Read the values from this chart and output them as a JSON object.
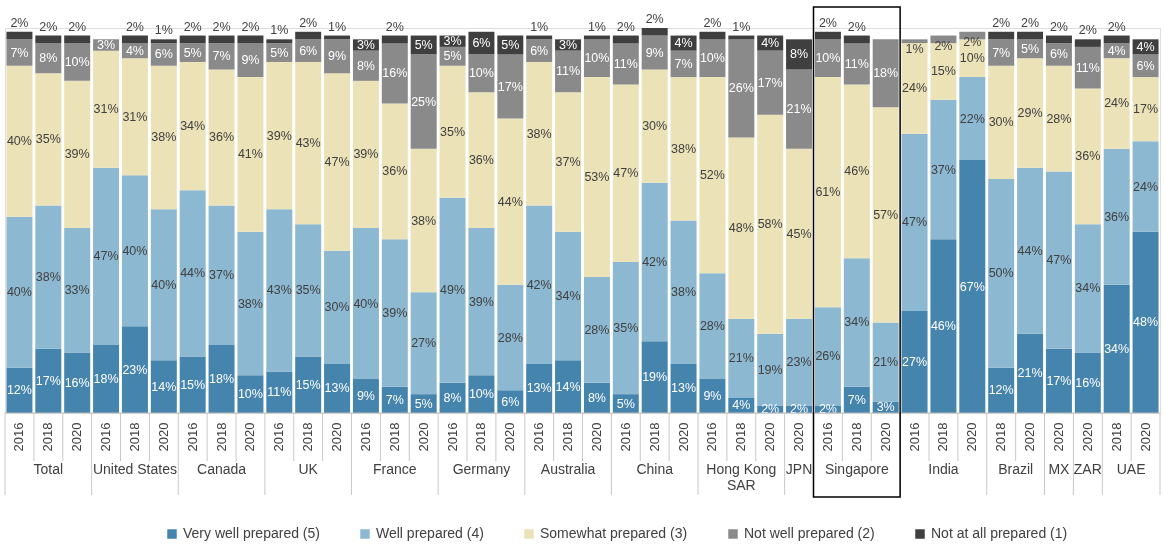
{
  "chart_data": {
    "type": "bar",
    "stacked": true,
    "legend": "bottom",
    "categories": [
      "2016",
      "2018",
      "2020",
      "2016",
      "2018",
      "2020",
      "2016",
      "2018",
      "2020",
      "2016",
      "2018",
      "2020",
      "2016",
      "2018",
      "2020",
      "2016",
      "2018",
      "2020",
      "2016",
      "2018",
      "2020",
      "2016",
      "2018",
      "2020",
      "2016",
      "2018",
      "2020",
      "2020",
      "2016",
      "2018",
      "2020",
      "2016",
      "2018",
      "2020",
      "2018",
      "2020",
      "2020",
      "2020",
      "2018",
      "2020"
    ],
    "annotations": [
      "Total",
      "United States",
      "Canada",
      "UK",
      "France",
      "Germany",
      "Australia",
      "China",
      "Hong Kong\nSAR",
      "JPN",
      "Singapore",
      "India",
      "Brazil",
      "MX",
      "ZAR",
      "UAE"
    ],
    "series": [
      {
        "name": "Very well prepared (5)",
        "color": "#4584ad",
        "values": [
          12,
          17,
          16,
          18,
          23,
          14,
          15,
          18,
          10,
          11,
          15,
          13,
          9,
          7,
          5,
          8,
          10,
          6,
          13,
          14,
          8,
          5,
          19,
          13,
          9,
          4,
          2,
          2,
          2,
          7,
          3,
          27,
          46,
          67,
          12,
          21,
          17,
          16,
          34,
          48
        ],
        "value_labels": [
          "12%",
          "17%",
          "16%",
          "18%",
          "23%",
          "14%",
          "15%",
          "18%",
          "10%",
          "11%",
          "15%",
          "13%",
          "9%",
          "7%",
          "5%",
          "8%",
          "10%",
          "6%",
          "13%",
          "14%",
          "8%",
          "5%",
          "19%",
          "13%",
          "9%",
          "4%",
          "2%",
          "2%",
          "2%",
          "7%",
          "3%",
          "27%",
          "46%",
          "67%",
          "12%",
          "21%",
          "17%",
          "16%",
          "34%",
          "48%"
        ]
      },
      {
        "name": "Well prepared (4)",
        "color": "#8db8d1",
        "values": [
          40,
          38,
          33,
          47,
          40,
          40,
          44,
          37,
          38,
          43,
          35,
          30,
          40,
          39,
          27,
          49,
          39,
          28,
          42,
          34,
          28,
          35,
          42,
          38,
          28,
          21,
          19,
          23,
          26,
          34,
          21,
          47,
          37,
          22,
          50,
          44,
          47,
          34,
          36,
          24
        ],
        "value_labels": [
          "40%",
          "38%",
          "33%",
          "47%",
          "40%",
          "40%",
          "44%",
          "37%",
          "38%",
          "43%",
          "35%",
          "30%",
          "40%",
          "39%",
          "27%",
          "49%",
          "39%",
          "28%",
          "42%",
          "34%",
          "28%",
          "35%",
          "42%",
          "38%",
          "28%",
          "21%",
          "19%",
          "23%",
          "26%",
          "34%",
          "21%",
          "47%",
          "37%",
          "22%",
          "50%",
          "44%",
          "47%",
          "34%",
          "36%",
          "24%"
        ]
      },
      {
        "name": "Somewhat prepared (3)",
        "color": "#ece2b8",
        "values": [
          40,
          35,
          39,
          31,
          31,
          38,
          34,
          36,
          41,
          39,
          43,
          47,
          39,
          36,
          38,
          35,
          36,
          44,
          38,
          37,
          53,
          47,
          30,
          38,
          52,
          48,
          58,
          45,
          61,
          46,
          57,
          24,
          15,
          10,
          30,
          29,
          28,
          36,
          24,
          17
        ],
        "value_labels": [
          "40%",
          "35%",
          "39%",
          "31%",
          "31%",
          "38%",
          "34%",
          "36%",
          "41%",
          "39%",
          "43%",
          "47%",
          "39%",
          "36%",
          "38%",
          "35%",
          "36%",
          "44%",
          "38%",
          "37%",
          "53%",
          "47%",
          "30%",
          "38%",
          "52%",
          "48%",
          "58%",
          "45%",
          "61%",
          "46%",
          "57%",
          "24%",
          "15%",
          "10%",
          "30%",
          "29%",
          "28%",
          "36%",
          "24%",
          "17%"
        ]
      },
      {
        "name": "Not well prepared (2)",
        "color": "#8a8a8a",
        "values": [
          7,
          8,
          10,
          3,
          4,
          6,
          5,
          7,
          9,
          5,
          6,
          9,
          8,
          16,
          25,
          5,
          10,
          17,
          6,
          11,
          10,
          11,
          9,
          7,
          10,
          26,
          17,
          21,
          10,
          11,
          18,
          1,
          2,
          2,
          7,
          5,
          6,
          11,
          4,
          6
        ],
        "value_labels": [
          "7%",
          "8%",
          "10%",
          "3%",
          "4%",
          "6%",
          "5%",
          "7%",
          "9%",
          "5%",
          "6%",
          "9%",
          "8%",
          "16%",
          "25%",
          "5%",
          "10%",
          "17%",
          "6%",
          "11%",
          "10%",
          "11%",
          "9%",
          "7%",
          "10%",
          "26%",
          "17%",
          "21%",
          "10%",
          "11%",
          "18%",
          "1%",
          "2%",
          "2%",
          "7%",
          "5%",
          "6%",
          "11%",
          "4%",
          "6%"
        ]
      },
      {
        "name": "Not at all prepared (1)",
        "color": "#3f3f3f",
        "values": [
          2,
          2,
          2,
          null,
          2,
          1,
          2,
          2,
          2,
          1,
          2,
          1,
          3,
          2,
          5,
          3,
          6,
          5,
          1,
          3,
          1,
          2,
          2,
          4,
          2,
          1,
          4,
          8,
          2,
          2,
          null,
          null,
          null,
          null,
          2,
          2,
          2,
          2,
          2,
          4
        ],
        "value_labels": [
          "2%",
          "2%",
          "2%",
          null,
          "2%",
          "1%",
          "2%",
          "2%",
          "2%",
          "1%",
          "2%",
          "1%",
          "3%",
          "2%",
          "5%",
          "3%",
          "6%",
          "5%",
          "1%",
          "3%",
          "1%",
          "2%",
          "2%",
          "4%",
          "2%",
          "1%",
          "4%",
          "8%",
          "2%",
          "2%",
          null,
          null,
          null,
          null,
          "2%",
          "2%",
          "2%",
          "2%",
          "2%",
          "4%"
        ]
      }
    ]
  }
}
